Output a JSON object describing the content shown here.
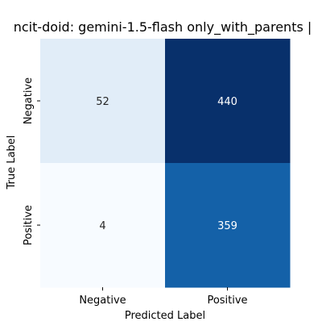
{
  "chart_data": {
    "type": "heatmap",
    "title": "ncit-doid: gemini-1.5-flash only_with_parents |",
    "xlabel": "Predicted Label",
    "ylabel": "True Label",
    "x_categories": [
      "Negative",
      "Positive"
    ],
    "y_categories": [
      "Negative",
      "Positive"
    ],
    "values": [
      [
        52,
        440
      ],
      [
        4,
        359
      ]
    ],
    "colormap": "Blues",
    "colorbar": false,
    "colors": {
      "low": "#f7fbff",
      "mid": "#6aaed6",
      "high": "#08306b",
      "text_dark": "#262626",
      "text_light": "#ffffff"
    }
  }
}
